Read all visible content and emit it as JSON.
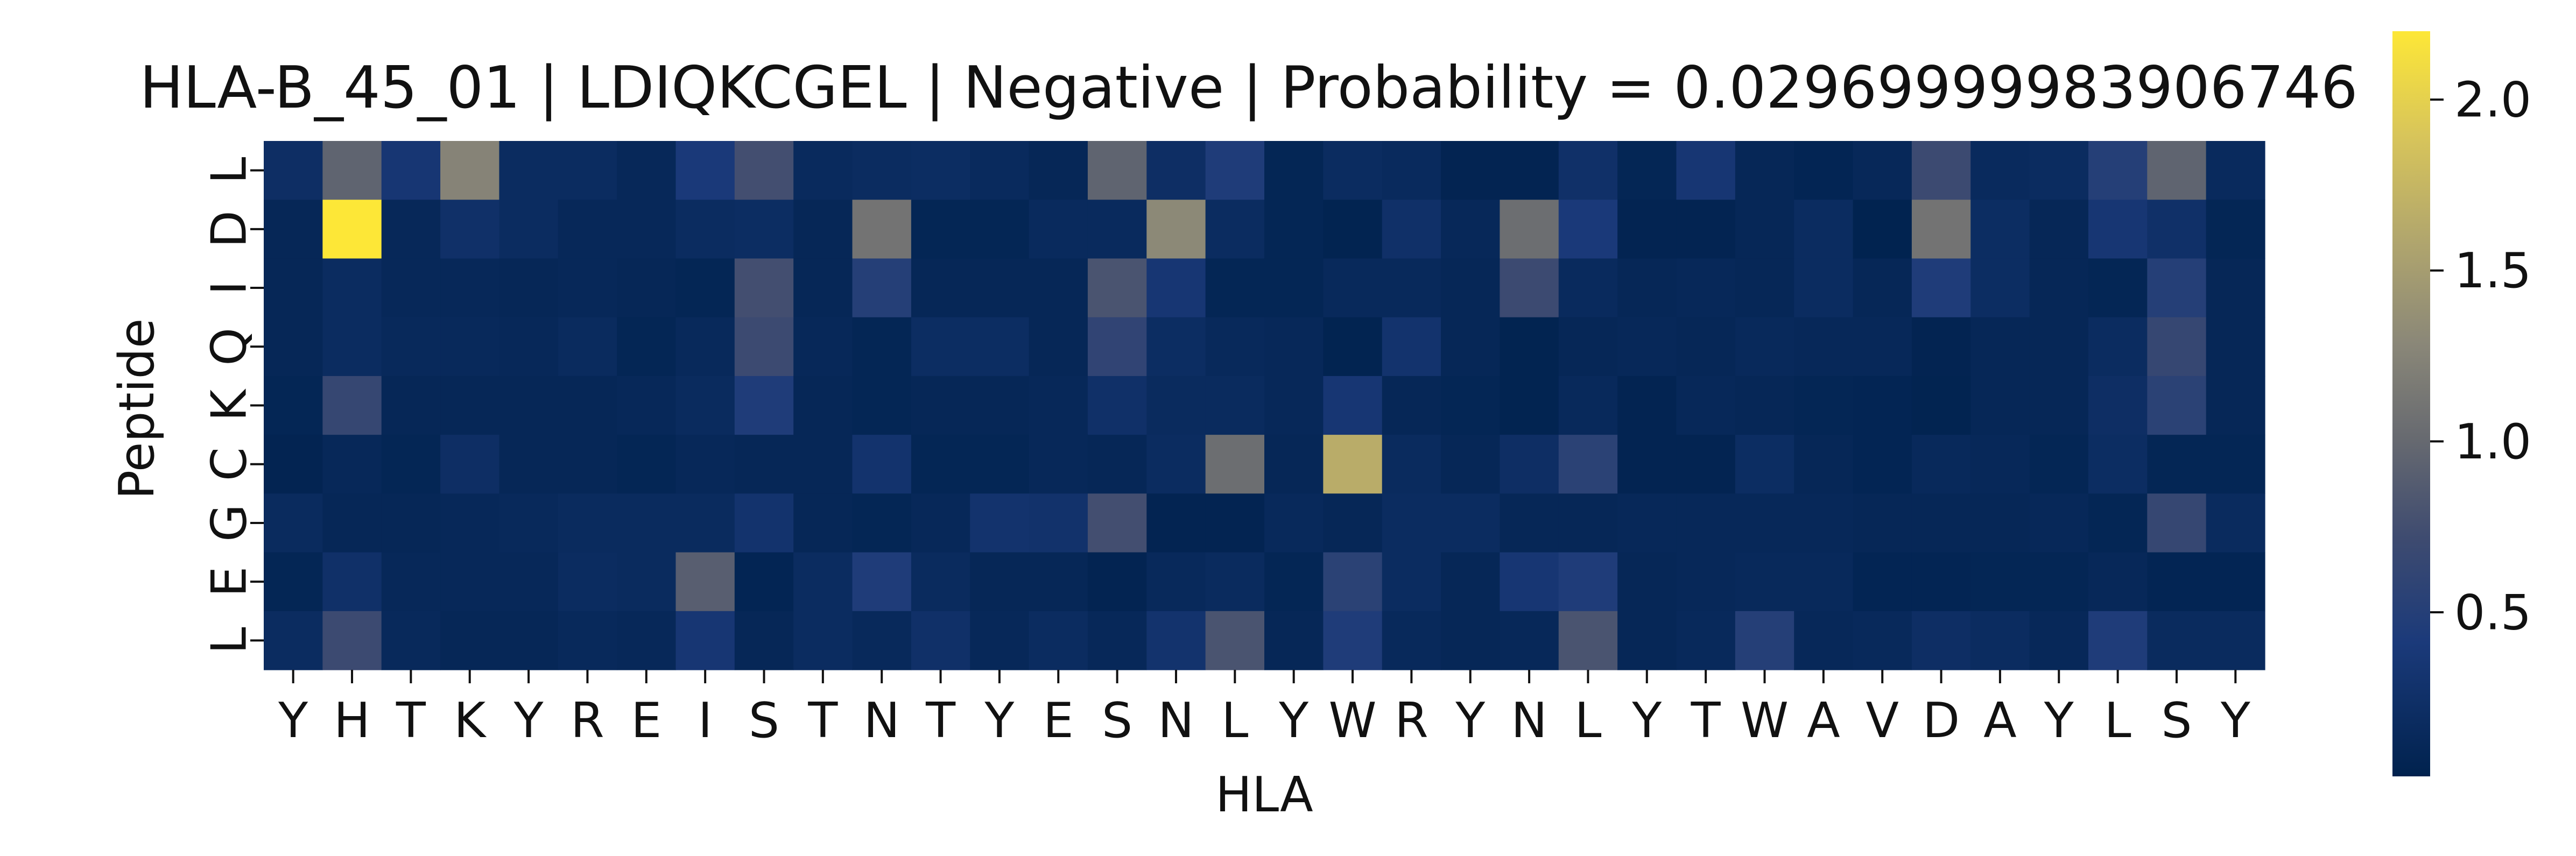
{
  "chart_data": {
    "type": "heatmap",
    "title": "HLA-B_45_01 | LDIQKCGEL | Negative | Probability = 0.029699999839067​46",
    "xlabel": "HLA",
    "ylabel": "Peptide",
    "x_categories": [
      "Y",
      "H",
      "T",
      "K",
      "Y",
      "R",
      "E",
      "I",
      "S",
      "T",
      "N",
      "T",
      "Y",
      "E",
      "S",
      "N",
      "L",
      "Y",
      "W",
      "R",
      "Y",
      "N",
      "L",
      "Y",
      "T",
      "W",
      "A",
      "V",
      "D",
      "A",
      "Y",
      "L",
      "S",
      "Y"
    ],
    "y_categories": [
      "L",
      "D",
      "I",
      "Q",
      "K",
      "C",
      "G",
      "E",
      "L"
    ],
    "colormap": "cividis",
    "colorbar": {
      "min": 0.02,
      "max": 2.2,
      "ticks": [
        0.5,
        1.0,
        1.5,
        2.0
      ]
    },
    "values": [
      [
        0.22,
        0.95,
        0.35,
        1.25,
        0.18,
        0.18,
        0.12,
        0.4,
        0.75,
        0.15,
        0.18,
        0.2,
        0.15,
        0.1,
        0.95,
        0.22,
        0.45,
        0.08,
        0.18,
        0.15,
        0.06,
        0.06,
        0.25,
        0.08,
        0.35,
        0.1,
        0.07,
        0.12,
        0.7,
        0.15,
        0.18,
        0.5,
        0.95,
        0.15
      ],
      [
        0.1,
        2.2,
        0.12,
        0.25,
        0.18,
        0.12,
        0.12,
        0.18,
        0.2,
        0.1,
        1.1,
        0.08,
        0.08,
        0.15,
        0.15,
        1.3,
        0.18,
        0.08,
        0.05,
        0.25,
        0.12,
        1.05,
        0.4,
        0.06,
        0.06,
        0.1,
        0.18,
        0.04,
        1.1,
        0.2,
        0.1,
        0.35,
        0.25,
        0.08
      ],
      [
        0.1,
        0.18,
        0.12,
        0.12,
        0.1,
        0.12,
        0.1,
        0.08,
        0.75,
        0.1,
        0.5,
        0.1,
        0.1,
        0.1,
        0.8,
        0.35,
        0.08,
        0.08,
        0.14,
        0.14,
        0.1,
        0.7,
        0.15,
        0.1,
        0.12,
        0.1,
        0.18,
        0.1,
        0.45,
        0.2,
        0.1,
        0.08,
        0.5,
        0.1
      ],
      [
        0.1,
        0.18,
        0.14,
        0.14,
        0.12,
        0.16,
        0.08,
        0.14,
        0.7,
        0.12,
        0.08,
        0.2,
        0.2,
        0.1,
        0.6,
        0.2,
        0.14,
        0.12,
        0.05,
        0.3,
        0.1,
        0.05,
        0.1,
        0.12,
        0.1,
        0.14,
        0.12,
        0.12,
        0.06,
        0.1,
        0.1,
        0.18,
        0.65,
        0.1
      ],
      [
        0.08,
        0.65,
        0.1,
        0.1,
        0.1,
        0.1,
        0.12,
        0.16,
        0.45,
        0.1,
        0.08,
        0.1,
        0.1,
        0.12,
        0.25,
        0.16,
        0.16,
        0.12,
        0.35,
        0.1,
        0.08,
        0.05,
        0.14,
        0.06,
        0.12,
        0.1,
        0.08,
        0.07,
        0.05,
        0.1,
        0.1,
        0.22,
        0.55,
        0.1
      ],
      [
        0.06,
        0.12,
        0.08,
        0.22,
        0.1,
        0.1,
        0.08,
        0.12,
        0.1,
        0.1,
        0.3,
        0.08,
        0.08,
        0.12,
        0.1,
        0.18,
        1.05,
        0.1,
        1.65,
        0.16,
        0.1,
        0.22,
        0.55,
        0.06,
        0.06,
        0.2,
        0.1,
        0.07,
        0.14,
        0.12,
        0.08,
        0.2,
        0.08,
        0.08
      ],
      [
        0.16,
        0.1,
        0.1,
        0.12,
        0.14,
        0.16,
        0.16,
        0.16,
        0.3,
        0.1,
        0.08,
        0.12,
        0.3,
        0.28,
        0.75,
        0.06,
        0.06,
        0.14,
        0.1,
        0.18,
        0.18,
        0.1,
        0.1,
        0.12,
        0.12,
        0.12,
        0.12,
        0.1,
        0.1,
        0.1,
        0.12,
        0.08,
        0.65,
        0.16
      ],
      [
        0.08,
        0.25,
        0.12,
        0.12,
        0.12,
        0.18,
        0.16,
        0.9,
        0.07,
        0.18,
        0.45,
        0.16,
        0.1,
        0.1,
        0.06,
        0.14,
        0.16,
        0.08,
        0.55,
        0.18,
        0.1,
        0.35,
        0.45,
        0.1,
        0.12,
        0.14,
        0.14,
        0.07,
        0.07,
        0.08,
        0.08,
        0.12,
        0.07,
        0.07
      ],
      [
        0.18,
        0.7,
        0.14,
        0.1,
        0.1,
        0.14,
        0.12,
        0.35,
        0.1,
        0.18,
        0.14,
        0.25,
        0.12,
        0.18,
        0.12,
        0.3,
        0.8,
        0.1,
        0.45,
        0.14,
        0.1,
        0.12,
        0.8,
        0.1,
        0.14,
        0.5,
        0.12,
        0.14,
        0.22,
        0.18,
        0.12,
        0.45,
        0.16,
        0.16
      ]
    ]
  }
}
